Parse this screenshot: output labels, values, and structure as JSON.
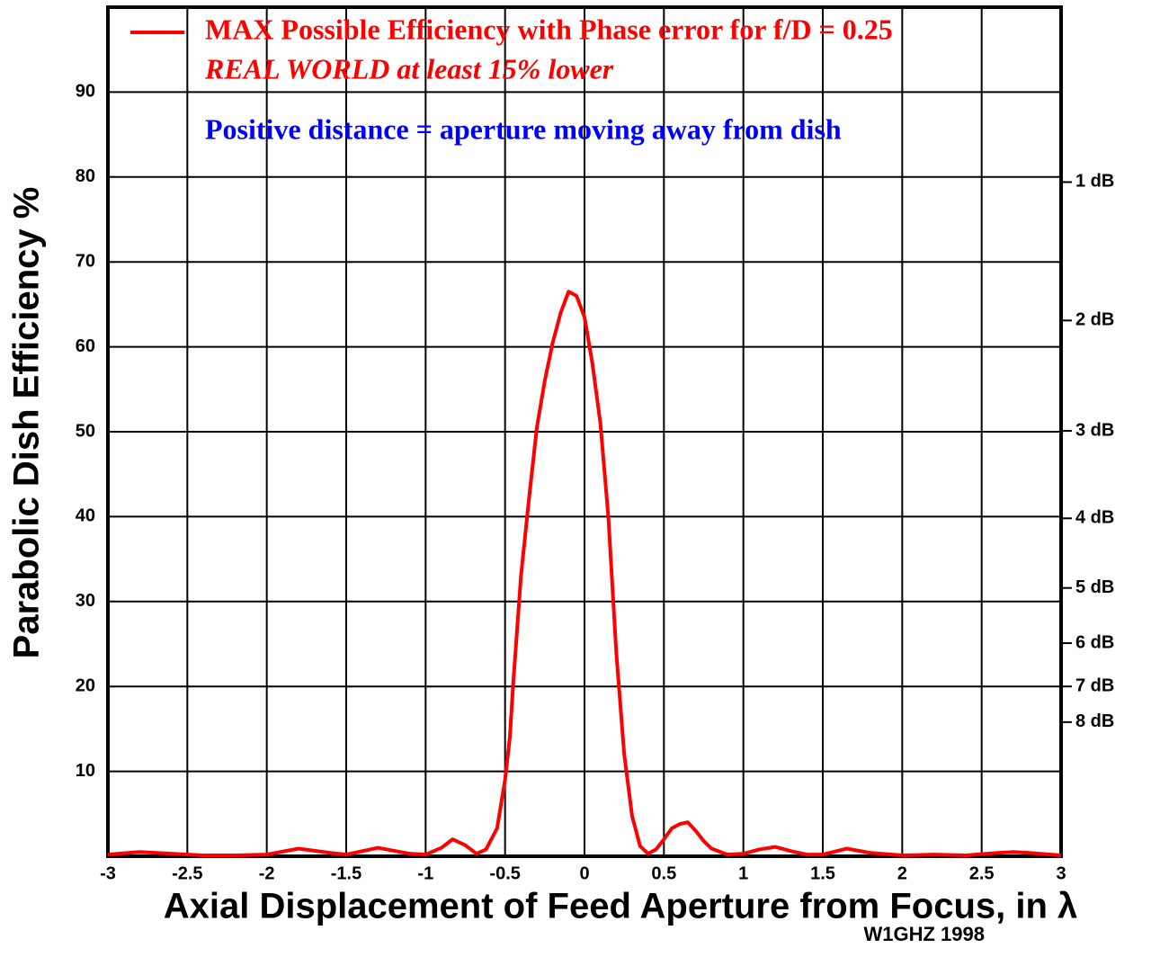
{
  "chart_data": {
    "type": "line",
    "xlabel": "Axial Displacement of Feed Aperture from Focus, in λ",
    "ylabel": "Parabolic Dish Efficiency %",
    "credit": "W1GHZ 1998",
    "annotations": [
      "REAL WORLD at least 15% lower",
      "Positive distance = aperture moving away from dish"
    ],
    "annotation_colors": [
      "#ff0000",
      "#0000ff"
    ],
    "x": [
      -3,
      -2.8,
      -2.6,
      -2.4,
      -2.2,
      -2.0,
      -1.8,
      -1.6,
      -1.5,
      -1.3,
      -1.1,
      -1.0,
      -0.9,
      -0.83,
      -0.75,
      -0.68,
      -0.62,
      -0.55,
      -0.5,
      -0.47,
      -0.45,
      -0.4,
      -0.35,
      -0.3,
      -0.25,
      -0.2,
      -0.15,
      -0.1,
      -0.05,
      0,
      0.05,
      0.1,
      0.15,
      0.2,
      0.25,
      0.3,
      0.35,
      0.4,
      0.45,
      0.5,
      0.55,
      0.6,
      0.65,
      0.7,
      0.75,
      0.8,
      0.9,
      1.0,
      1.1,
      1.2,
      1.3,
      1.4,
      1.5,
      1.65,
      1.8,
      2.0,
      2.2,
      2.4,
      2.6,
      2.7,
      2.8,
      3.0
    ],
    "series": [
      {
        "name": "MAX Possible Efficiency with Phase error for f/D = 0.25",
        "color": "#ff0000",
        "values": [
          0.2,
          0.5,
          0.3,
          0.1,
          0.1,
          0.2,
          0.9,
          0.4,
          0.2,
          1.0,
          0.3,
          0.2,
          1.0,
          2.0,
          1.3,
          0.3,
          0.8,
          3.3,
          9,
          14,
          20,
          33,
          42,
          50.5,
          56,
          60.5,
          64,
          66.5,
          66,
          63.5,
          58,
          51,
          40,
          24,
          12,
          4.7,
          1.2,
          0.3,
          0.8,
          2,
          3.3,
          3.8,
          4.0,
          3.0,
          1.8,
          0.9,
          0.2,
          0.3,
          0.8,
          1.1,
          0.6,
          0.2,
          0.2,
          0.9,
          0.4,
          0.1,
          0.2,
          0.1,
          0.4,
          0.5,
          0.4,
          0.1
        ]
      }
    ],
    "xlim": [
      -3,
      3
    ],
    "xticks": [
      -3,
      -2.5,
      -2,
      -1.5,
      -1,
      -0.5,
      0,
      0.5,
      1,
      1.5,
      2,
      2.5,
      3
    ],
    "ylim": [
      0,
      100
    ],
    "yticks": [
      10,
      20,
      30,
      40,
      50,
      60,
      70,
      80,
      90
    ],
    "y2lim": [
      0,
      100
    ],
    "y2ticks": [
      {
        "value": 79.4,
        "label": "1 dB"
      },
      {
        "value": 63.1,
        "label": "2 dB"
      },
      {
        "value": 50.1,
        "label": "3 dB"
      },
      {
        "value": 39.8,
        "label": "4 dB"
      },
      {
        "value": 31.6,
        "label": "5 dB"
      },
      {
        "value": 25.1,
        "label": "6 dB"
      },
      {
        "value": 20.0,
        "label": "7 dB"
      },
      {
        "value": 15.8,
        "label": "8 dB"
      }
    ],
    "grid": true,
    "legend": "top"
  }
}
